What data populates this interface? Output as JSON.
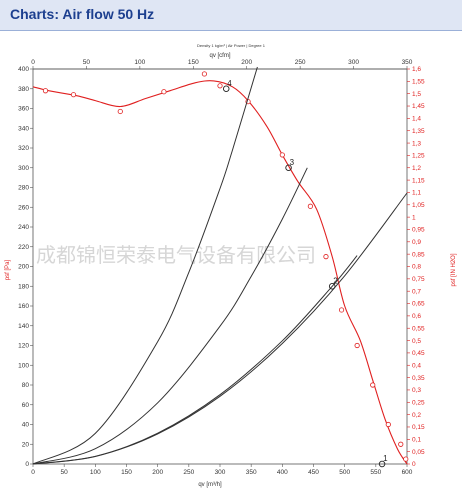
{
  "header": {
    "title": "Charts: Air flow 50 Hz"
  },
  "watermark": "成都锦恒荣泰电气设备有限公司",
  "chart_data": {
    "type": "line",
    "caption": "Density 1 kg/m³ | Air Power | Degree 1",
    "xlabel_bottom": "qv [m³/h]",
    "xlabel_top": "qv [cfm]",
    "ylabel_left": "psf [Pa]",
    "ylabel_right": "psf [IN H2O]",
    "xlim_bottom": [
      0,
      600
    ],
    "xlim_top": [
      0,
      350
    ],
    "ylim_left": [
      0,
      400
    ],
    "ylim_right": [
      0,
      1.6
    ],
    "x_ticks_bottom": [
      0,
      50,
      100,
      150,
      200,
      250,
      300,
      350,
      400,
      450,
      500,
      550,
      600
    ],
    "x_ticks_top": [
      0,
      50,
      100,
      150,
      200,
      250,
      300,
      350
    ],
    "y_ticks_left": [
      0,
      20,
      40,
      60,
      80,
      100,
      120,
      140,
      160,
      180,
      200,
      220,
      240,
      260,
      280,
      300,
      320,
      340,
      360,
      380,
      400
    ],
    "y_ticks_right": [
      "0",
      "0,05",
      "0,1",
      "0,15",
      "0,2",
      "0,25",
      "0,3",
      "0,35",
      "0,4",
      "0,45",
      "0,5",
      "0,55",
      "0,6",
      "0,65",
      "0,7",
      "0,75",
      "0,8",
      "0,85",
      "0,9",
      "0,95",
      "1",
      "1,05",
      "1,1",
      "1,15",
      "1,2",
      "1,25",
      "1,3",
      "1,35",
      "1,4",
      "1,45",
      "1,5",
      "1,55",
      "1,6"
    ],
    "grid": false,
    "series": [
      {
        "kind": "fan-curve",
        "color": "#e02020",
        "x": [
          0,
          25,
          70,
          100,
          140,
          180,
          220,
          260,
          290,
          320,
          345,
          375,
          400,
          425,
          455,
          480,
          500,
          525,
          545,
          565,
          585,
          600
        ],
        "y": [
          382,
          378,
          373,
          368,
          362,
          370,
          378,
          386,
          388,
          382,
          368,
          342,
          313,
          286,
          258,
          210,
          160,
          125,
          85,
          45,
          15,
          0
        ],
        "markers_x": [
          20,
          65,
          140,
          210,
          275,
          300,
          345,
          400,
          445,
          470,
          495,
          520,
          545,
          570,
          590,
          598
        ],
        "markers_y": [
          378,
          374,
          357,
          377,
          395,
          383,
          367,
          313,
          261,
          210,
          156,
          120,
          80,
          40,
          20,
          5
        ]
      },
      {
        "kind": "system-curve",
        "label": "1",
        "color": "#333333",
        "x": [
          0,
          100,
          200,
          300,
          400,
          500,
          600
        ],
        "y": [
          0,
          7.6,
          30.5,
          68.6,
          122,
          190.6,
          274.4
        ]
      },
      {
        "kind": "system-curve",
        "label": "2",
        "color": "#333333",
        "x": [
          0,
          100,
          200,
          300,
          400,
          480,
          520
        ],
        "y": [
          0,
          7.8,
          31.2,
          70.2,
          124.8,
          180,
          211
        ]
      },
      {
        "kind": "system-curve",
        "label": "3",
        "color": "#333333",
        "x": [
          0,
          100,
          200,
          300,
          350,
          400,
          440
        ],
        "y": [
          0,
          15.5,
          62,
          139.5,
          190,
          248,
          300
        ]
      },
      {
        "kind": "system-curve",
        "label": "4",
        "color": "#333333",
        "x": [
          0,
          100,
          200,
          250,
          300,
          320,
          360
        ],
        "y": [
          0,
          31,
          124,
          194,
          279,
          318,
          402
        ]
      }
    ],
    "operating_points": [
      {
        "label": "4",
        "x": 310,
        "y": 380
      },
      {
        "label": "3",
        "x": 410,
        "y": 300
      },
      {
        "label": "2",
        "x": 480,
        "y": 180
      },
      {
        "label": "1",
        "x": 560,
        "y": 0
      }
    ]
  }
}
